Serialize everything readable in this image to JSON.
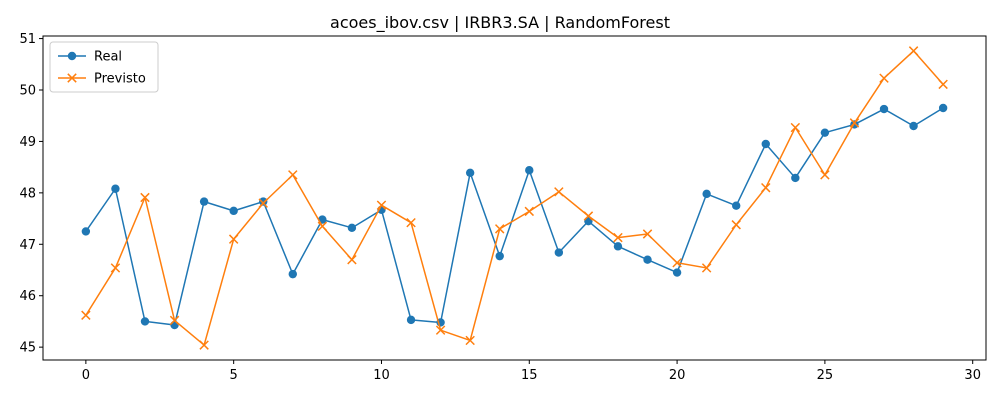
{
  "chart_data": {
    "type": "line",
    "title": "acoes_ibov.csv | IRBR3.SA | RandomForest",
    "xlabel": "",
    "ylabel": "",
    "xlim": [
      -1.45,
      30.45
    ],
    "ylim": [
      44.75,
      51.05
    ],
    "xticks": [
      0,
      5,
      10,
      15,
      20,
      25,
      30
    ],
    "yticks": [
      45,
      46,
      47,
      48,
      49,
      50,
      51
    ],
    "grid": false,
    "legend_position": "top-left",
    "x": [
      0,
      1,
      2,
      3,
      4,
      5,
      6,
      7,
      8,
      9,
      10,
      11,
      12,
      13,
      14,
      15,
      16,
      17,
      18,
      19,
      20,
      21,
      22,
      23,
      24,
      25,
      26,
      27,
      28,
      29
    ],
    "series": [
      {
        "name": "Real",
        "color": "#1f77b4",
        "marker": "circle",
        "values": [
          47.25,
          48.08,
          45.5,
          45.43,
          47.83,
          47.65,
          47.83,
          46.42,
          47.48,
          47.32,
          47.67,
          45.53,
          45.48,
          48.39,
          46.77,
          48.44,
          46.84,
          47.45,
          46.96,
          46.7,
          46.45,
          47.98,
          47.75,
          48.95,
          48.29,
          49.17,
          49.33,
          49.63,
          49.3,
          49.65
        ]
      },
      {
        "name": "Previsto",
        "color": "#ff7f0e",
        "marker": "x",
        "values": [
          45.62,
          46.54,
          47.91,
          45.52,
          45.04,
          47.1,
          47.8,
          48.35,
          47.35,
          46.7,
          47.76,
          47.42,
          45.33,
          45.13,
          47.3,
          47.64,
          48.02,
          47.55,
          47.13,
          47.2,
          46.64,
          46.54,
          47.38,
          48.1,
          49.27,
          48.35,
          49.36,
          50.23,
          50.76,
          50.11
        ]
      }
    ]
  }
}
